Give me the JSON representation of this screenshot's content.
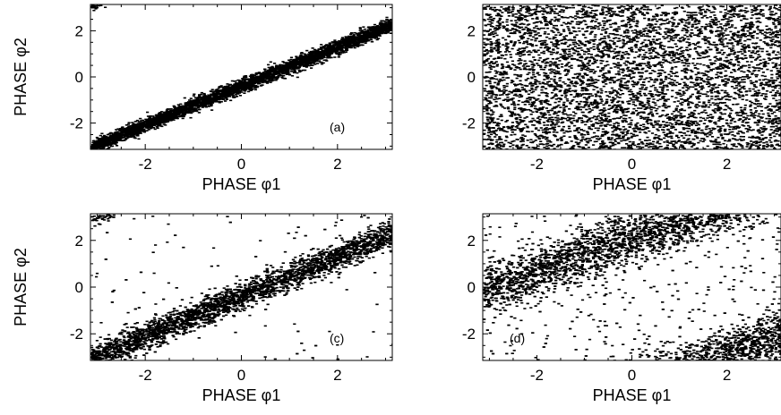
{
  "figure": {
    "ink_color": "#000000",
    "background": "#ffffff"
  },
  "chart_data": [
    {
      "id": "a",
      "type": "scatter",
      "panel_label": "(a)",
      "xlabel": "PHASE φ1",
      "ylabel": "PHASE φ2",
      "xlim": [
        -3.14,
        3.14
      ],
      "ylim": [
        -3.14,
        3.14
      ],
      "xticks": [
        "-2",
        "0",
        "2"
      ],
      "yticks": [
        "-2",
        "0",
        "2"
      ],
      "grid": false,
      "distribution": {
        "kind": "band",
        "slope": 0.85,
        "offset": -0.35,
        "width": 0.15,
        "wrap": true,
        "noise": 0.0
      }
    },
    {
      "id": "b",
      "type": "scatter",
      "panel_label": "",
      "xlabel": "PHASE φ1",
      "ylabel": "",
      "xlim": [
        -3.14,
        3.14
      ],
      "ylim": [
        -3.14,
        3.14
      ],
      "xticks": [
        "-2",
        "0",
        "2"
      ],
      "yticks": [
        "-2",
        "0",
        "2"
      ],
      "grid": false,
      "distribution": {
        "kind": "uniform"
      }
    },
    {
      "id": "c",
      "type": "scatter",
      "panel_label": "(c)",
      "xlabel": "PHASE φ1",
      "ylabel": "PHASE φ2",
      "xlim": [
        -3.14,
        3.14
      ],
      "ylim": [
        -3.14,
        3.14
      ],
      "xticks": [
        "-2",
        "0",
        "2"
      ],
      "yticks": [
        "-2",
        "0",
        "2"
      ],
      "grid": false,
      "distribution": {
        "kind": "band",
        "slope": 0.85,
        "offset": -0.35,
        "width": 0.3,
        "wrap": true,
        "noise": 0.03
      }
    },
    {
      "id": "d",
      "type": "scatter",
      "panel_label": "(d)",
      "xlabel": "PHASE φ1",
      "ylabel": "",
      "xlim": [
        -3.14,
        3.14
      ],
      "ylim": [
        -3.14,
        3.14
      ],
      "xticks": [
        "-2",
        "0",
        "2"
      ],
      "yticks": [
        "-2",
        "0",
        "2"
      ],
      "grid": false,
      "distribution": {
        "kind": "band",
        "slope": 0.7,
        "offset": 2.1,
        "width": 0.55,
        "wrap": true,
        "noise": 0.12
      }
    }
  ]
}
